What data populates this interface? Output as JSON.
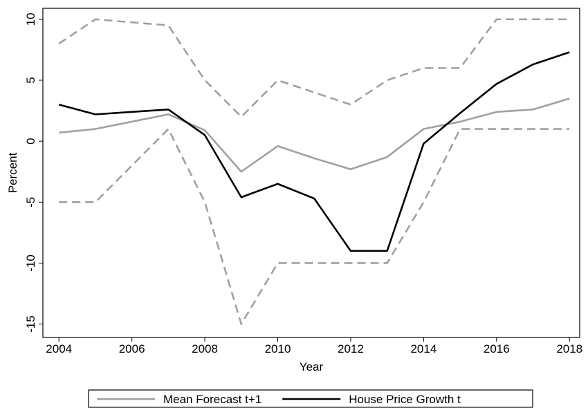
{
  "chart_data": {
    "type": "line",
    "x_label": "Year",
    "y_label": "Percent",
    "x": [
      2004,
      2005,
      2006,
      2007,
      2008,
      2009,
      2010,
      2011,
      2012,
      2013,
      2014,
      2015,
      2016,
      2017,
      2018
    ],
    "series": [
      {
        "name": "Mean Forecast t+1",
        "color": "#a0a0a0",
        "values": [
          0.7,
          1.0,
          1.6,
          2.2,
          0.9,
          -2.5,
          -0.4,
          -1.4,
          -2.3,
          -1.3,
          1.0,
          1.6,
          2.4,
          2.6,
          3.5
        ]
      },
      {
        "name": "House Price Growth t",
        "color": "#000000",
        "values": [
          3.0,
          2.2,
          2.4,
          2.6,
          0.5,
          -4.6,
          -3.5,
          -4.7,
          -9.0,
          -9.0,
          -0.2,
          2.3,
          4.7,
          6.3,
          7.3
        ]
      },
      {
        "color": "#a0a0a0",
        "dash": true,
        "values": [
          8,
          10,
          9.75,
          9.5,
          5,
          2,
          5,
          4,
          3,
          5,
          6,
          6,
          10,
          10,
          10
        ]
      },
      {
        "color": "#a0a0a0",
        "dash": true,
        "values": [
          -5,
          -5,
          -2,
          1,
          -5,
          -15,
          -10,
          -10,
          -10,
          -10,
          -5,
          1,
          1,
          1,
          1
        ]
      }
    ],
    "xlim": [
      2003.56,
      2018.28
    ],
    "ylim": [
      -16.1,
      10.9
    ],
    "xticks": [
      2004,
      2006,
      2008,
      2010,
      2012,
      2014,
      2016,
      2018
    ],
    "yticks": [
      -15,
      -10,
      -5,
      0,
      5,
      10
    ],
    "grid": false
  }
}
